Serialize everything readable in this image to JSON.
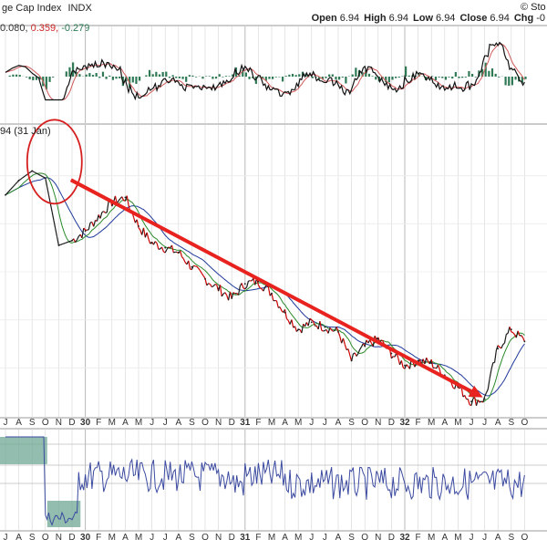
{
  "header": {
    "title_fragment": "ge Cap Index",
    "exchange": "INDX",
    "logo_fragment": "© Sto",
    "ohlc": [
      {
        "label": "Open",
        "value": "6.94"
      },
      {
        "label": "High",
        "value": "6.94"
      },
      {
        "label": "Low",
        "value": "6.94"
      },
      {
        "label": "Close",
        "value": "6.94"
      },
      {
        "label": "Chg",
        "value": "-0"
      }
    ]
  },
  "macd_panel": {
    "values": [
      {
        "text": "0.080,",
        "color": "#333333"
      },
      {
        "text": "0.359,",
        "color": "#cc2222"
      },
      {
        "text": "-0.279",
        "color": "#2a7a55"
      }
    ]
  },
  "price_panel": {
    "price_label": "94 (31 Jan)"
  },
  "colors": {
    "price": "#1a1a1a",
    "price_down": "#cc0000",
    "ma_fast": "#2a8a2a",
    "ma_slow": "#1f3a9a",
    "macd_line": "#111111",
    "signal_line": "#d05a5a",
    "histogram": "#2f7a55",
    "rsi_line": "#3b4aa0",
    "rsi_fill": "#6fa894",
    "trend_arrow": "#e8231f",
    "highlight_circle": "#d62020",
    "grid": "#d4d4d4"
  },
  "chart_data": {
    "type": "line",
    "x": [
      "1929-07",
      "1929-08",
      "1929-09",
      "1929-10",
      "1929-11",
      "1929-12",
      "1930-01",
      "1930-02",
      "1930-03",
      "1930-04",
      "1930-05",
      "1930-06",
      "1930-07",
      "1930-08",
      "1930-09",
      "1930-10",
      "1930-11",
      "1930-12",
      "1931-01",
      "1931-02",
      "1931-03",
      "1931-04",
      "1931-05",
      "1931-06",
      "1931-07",
      "1931-08",
      "1931-09",
      "1931-10",
      "1931-11",
      "1931-12",
      "1932-01",
      "1932-02",
      "1932-03",
      "1932-04",
      "1932-05",
      "1932-06",
      "1932-07",
      "1932-08",
      "1932-09",
      "1932-10"
    ],
    "x_tick_labels": [
      "J",
      "A",
      "S",
      "O",
      "N",
      "D",
      "30",
      "F",
      "M",
      "A",
      "M",
      "J",
      "J",
      "A",
      "S",
      "O",
      "N",
      "D",
      "31",
      "F",
      "M",
      "A",
      "M",
      "J",
      "J",
      "A",
      "S",
      "O",
      "N",
      "D",
      "32",
      "F",
      "M",
      "A",
      "M",
      "J",
      "J",
      "A",
      "S",
      "O"
    ],
    "series": [
      {
        "values": [
          9.2,
          9.8,
          10.2,
          9.9,
          7.1,
          7.3,
          7.7,
          8.3,
          8.9,
          9.1,
          7.9,
          7.2,
          7.0,
          6.8,
          6.2,
          5.7,
          5.3,
          4.9,
          5.5,
          5.6,
          5.1,
          4.3,
          3.6,
          3.9,
          3.7,
          3.5,
          2.3,
          2.9,
          3.2,
          2.6,
          2.1,
          2.3,
          2.2,
          1.7,
          1.2,
          0.6,
          0.7,
          2.8,
          3.6,
          3.1
        ]
      }
    ],
    "annotations": [
      {
        "type": "trend_arrow",
        "from": "1929-10",
        "to": "1932-07"
      },
      {
        "type": "circle",
        "around": "1929-10"
      }
    ],
    "ylim": [
      0,
      12
    ],
    "grid": true
  }
}
